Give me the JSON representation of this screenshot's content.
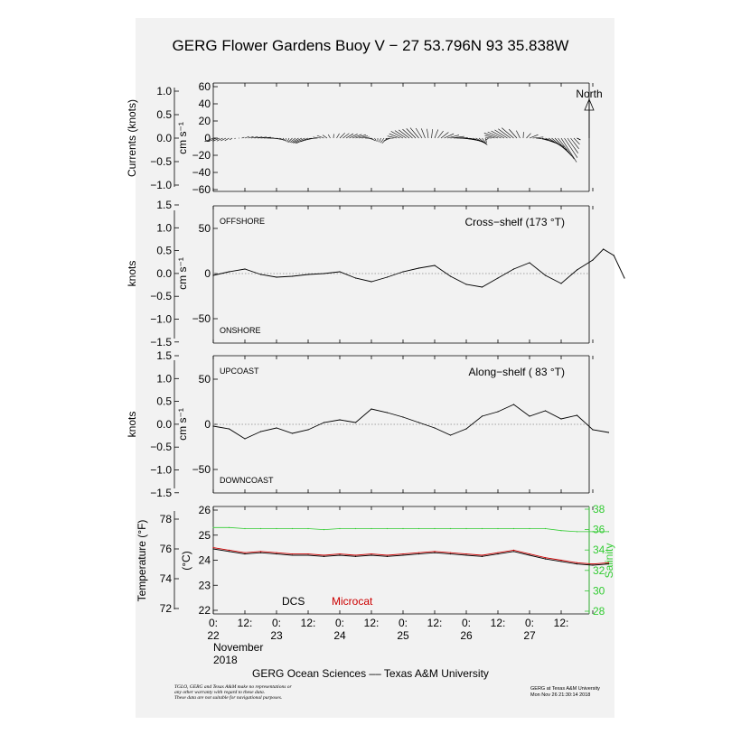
{
  "title": "GERG Flower Gardens Buoy V − 27 53.796N  93 35.838W",
  "footer": "GERG Ocean Sciences –– Texas A&M University",
  "disclaimer": [
    "TGLO, GERG and Texas A&M make no representations or",
    "any other warranty with regard to these data.",
    "These data are not suitable for navigational purposes."
  ],
  "credit": [
    "GERG at Texas A&M University",
    "Mon Nov 26 21:30:14 2018"
  ],
  "x_axis": {
    "ticks": [
      {
        "top": "0:",
        "bottom": "22"
      },
      {
        "top": "12:",
        "bottom": ""
      },
      {
        "top": "0:",
        "bottom": "23"
      },
      {
        "top": "12:",
        "bottom": ""
      },
      {
        "top": "0:",
        "bottom": "24"
      },
      {
        "top": "12:",
        "bottom": ""
      },
      {
        "top": "0:",
        "bottom": "25"
      },
      {
        "top": "12:",
        "bottom": ""
      },
      {
        "top": "0:",
        "bottom": "26"
      },
      {
        "top": "12:",
        "bottom": ""
      },
      {
        "top": "0:",
        "bottom": "27"
      },
      {
        "top": "12:",
        "bottom": ""
      }
    ],
    "month": "November",
    "year": "2018"
  },
  "colors": {
    "microcat": "#cc0000",
    "salinity": "#33cc33",
    "dcs": "#000000",
    "background": "#f2f2f2"
  },
  "chart_data": [
    {
      "type": "line",
      "panel": "currents",
      "subtype": "stick vectors",
      "ylabel_left": "Currents (knots)",
      "ylabel_right": "cm s⁻¹",
      "yticks_left": [
        "1.0",
        "0.5",
        "0.0",
        "−0.5",
        "−1.0"
      ],
      "yticks_right": [
        "60",
        "40",
        "20",
        "0",
        "−20",
        "−40",
        "−60"
      ],
      "ylim": [
        -62,
        62
      ],
      "annotation": "North",
      "x_hours": [
        0,
        6,
        12,
        18,
        24,
        30,
        36,
        42,
        48,
        54,
        60,
        66,
        72,
        78,
        84,
        90,
        96,
        102,
        108,
        114,
        120,
        126,
        132,
        138
      ],
      "u_cm_s": [
        -10,
        -5,
        5,
        12,
        8,
        -5,
        -14,
        -8,
        6,
        12,
        4,
        -6,
        -14,
        -10,
        4,
        16,
        20,
        6,
        -16,
        -14,
        10,
        22,
        18,
        4
      ],
      "v_cm_s": [
        -4,
        -3,
        2,
        1,
        -2,
        -5,
        -6,
        3,
        6,
        4,
        -3,
        -6,
        8,
        12,
        10,
        2,
        -4,
        -8,
        6,
        12,
        4,
        -10,
        -28,
        -2
      ]
    },
    {
      "type": "line",
      "panel": "cross-shelf",
      "title": "Cross−shelf (173 °T)",
      "label_top": "OFFSHORE",
      "label_bottom": "ONSHORE",
      "ylabel_left": "knots",
      "ylabel_right": "cm s⁻¹",
      "yticks_left": [
        "1.5",
        "1.0",
        "0.5",
        "0.0",
        "−0.5",
        "−1.0",
        "−1.5"
      ],
      "yticks_right": [
        "50",
        "0",
        "−50"
      ],
      "ylim": [
        -77,
        77
      ],
      "x_hours": [
        0,
        6,
        12,
        18,
        24,
        30,
        36,
        42,
        48,
        54,
        60,
        66,
        72,
        78,
        84,
        90,
        96,
        102,
        108,
        114,
        120,
        126,
        132,
        138,
        144,
        148,
        152,
        156
      ],
      "values": [
        -2,
        2,
        5,
        -1,
        -4,
        -3,
        -1,
        0,
        2,
        -5,
        -9,
        -4,
        2,
        6,
        9,
        -3,
        -12,
        -15,
        -5,
        5,
        12,
        -2,
        -11,
        4,
        15,
        27,
        20,
        -5
      ]
    },
    {
      "type": "line",
      "panel": "along-shelf",
      "title": "Along−shelf ( 83 °T)",
      "label_top": "UPCOAST",
      "label_bottom": "DOWNCOAST",
      "ylabel_left": "knots",
      "ylabel_right": "cm s⁻¹",
      "yticks_left": [
        "1.5",
        "1.0",
        "0.5",
        "0.0",
        "−0.5",
        "−1.0",
        "−1.5"
      ],
      "yticks_right": [
        "50",
        "0",
        "−50"
      ],
      "ylim": [
        -77,
        77
      ],
      "x_hours": [
        0,
        6,
        12,
        18,
        24,
        30,
        36,
        42,
        48,
        54,
        60,
        66,
        72,
        78,
        84,
        90,
        96,
        102,
        108,
        114,
        120,
        126,
        132,
        138,
        144,
        150
      ],
      "values": [
        -2,
        -5,
        -16,
        -8,
        -4,
        -10,
        -6,
        2,
        5,
        2,
        17,
        13,
        8,
        2,
        -4,
        -12,
        -5,
        9,
        14,
        22,
        9,
        15,
        6,
        10,
        -6,
        -9
      ]
    },
    {
      "type": "line",
      "panel": "temperature",
      "ylabel_left": "Temperature (°F)",
      "ylabel_mid": "(°C)",
      "ylabel_right": "Salinity",
      "yticks_left_f": [
        "78",
        "76",
        "74",
        "72"
      ],
      "yticks_c": [
        "26",
        "25",
        "24",
        "23",
        "22"
      ],
      "yticks_salinity": [
        "38",
        "36",
        "34",
        "32",
        "30",
        "28"
      ],
      "ylim_c": [
        22,
        26
      ],
      "ylim_salinity": [
        28,
        38
      ],
      "legend": [
        "DCS",
        "Microcat"
      ],
      "x_hours": [
        0,
        6,
        12,
        18,
        24,
        30,
        36,
        42,
        48,
        54,
        60,
        66,
        72,
        78,
        84,
        90,
        96,
        102,
        108,
        114,
        120,
        126,
        132,
        138,
        144,
        150
      ],
      "series": [
        {
          "name": "DCS",
          "values": [
            24.45,
            24.35,
            24.25,
            24.3,
            24.25,
            24.2,
            24.2,
            24.15,
            24.2,
            24.15,
            24.2,
            24.15,
            24.2,
            24.25,
            24.3,
            24.25,
            24.2,
            24.15,
            24.25,
            24.35,
            24.2,
            24.05,
            23.95,
            23.85,
            23.8,
            23.85
          ]
        },
        {
          "name": "Microcat",
          "values": [
            24.5,
            24.4,
            24.3,
            24.35,
            24.3,
            24.25,
            24.25,
            24.2,
            24.25,
            24.2,
            24.25,
            24.2,
            24.25,
            24.3,
            24.35,
            24.3,
            24.25,
            24.2,
            24.3,
            24.4,
            24.25,
            24.1,
            24.0,
            23.9,
            23.85,
            23.9
          ]
        },
        {
          "name": "Salinity",
          "values": [
            36.2,
            36.2,
            36.1,
            36.1,
            36.1,
            36.1,
            36.1,
            36.0,
            36.1,
            36.1,
            36.1,
            36.1,
            36.1,
            36.1,
            36.1,
            36.1,
            36.1,
            36.1,
            36.1,
            36.1,
            36.1,
            36.1,
            35.9,
            35.8,
            35.8,
            35.8
          ]
        }
      ]
    }
  ]
}
